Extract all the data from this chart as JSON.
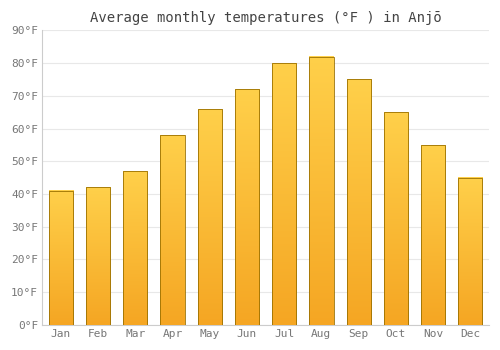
{
  "title": "Average monthly temperatures (°F ) in Anjō",
  "months": [
    "Jan",
    "Feb",
    "Mar",
    "Apr",
    "May",
    "Jun",
    "Jul",
    "Aug",
    "Sep",
    "Oct",
    "Nov",
    "Dec"
  ],
  "values": [
    41,
    42,
    47,
    58,
    66,
    72,
    80,
    82,
    75,
    65,
    55,
    45
  ],
  "bar_color_main": "#F5A623",
  "bar_color_bright": "#FFD04A",
  "bar_edge_color": "#9A7000",
  "ylim": [
    0,
    90
  ],
  "yticks": [
    0,
    10,
    20,
    30,
    40,
    50,
    60,
    70,
    80,
    90
  ],
  "ytick_labels": [
    "0°F",
    "10°F",
    "20°F",
    "30°F",
    "40°F",
    "50°F",
    "60°F",
    "70°F",
    "80°F",
    "90°F"
  ],
  "background_color": "#ffffff",
  "grid_color": "#e8e8e8",
  "title_fontsize": 10,
  "tick_fontsize": 8,
  "tick_color": "#777777",
  "font_family": "monospace"
}
